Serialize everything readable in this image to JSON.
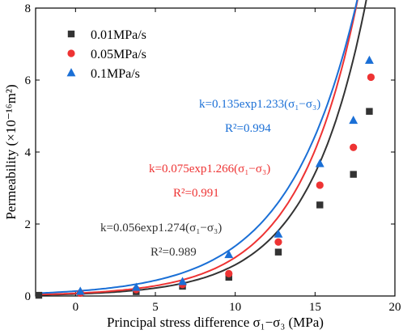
{
  "chart_data": {
    "type": "scatter",
    "xlabel": "Principal stress difference σ₁−σ₃ (MPa)",
    "ylabel": "Permeability (×10⁻¹⁶m²)",
    "xlim": [
      -2.5,
      20
    ],
    "ylim": [
      0,
      8
    ],
    "xticks": [
      0,
      5,
      10,
      15,
      20
    ],
    "yticks": [
      0,
      2,
      4,
      6,
      8
    ],
    "legend_position": "top-left",
    "series": [
      {
        "name": "0.01MPa/s",
        "color": "#333333",
        "marker": "square",
        "x": [
          -2.3,
          3.8,
          6.7,
          9.6,
          12.7,
          15.3,
          17.4,
          18.4
        ],
        "y": [
          0.02,
          0.12,
          0.27,
          0.52,
          1.22,
          2.53,
          3.38,
          5.13
        ],
        "fit": {
          "a": 0.056,
          "b": 0.274
        },
        "equation": "k=0.056exp1.274(σ₁−σ₃)",
        "r2": "R²=0.989"
      },
      {
        "name": "0.05MPa/s",
        "color": "#ee3333",
        "marker": "circle",
        "x": [
          0.3,
          3.8,
          6.7,
          9.6,
          12.7,
          15.3,
          17.4,
          18.5
        ],
        "y": [
          0.08,
          0.18,
          0.32,
          0.62,
          1.5,
          3.08,
          4.13,
          6.08
        ],
        "fit": {
          "a": 0.075,
          "b": 0.266
        },
        "equation": "k=0.075exp1.266(σ₁−σ₃)",
        "r2": "R²=0.991"
      },
      {
        "name": "0.1MPa/s",
        "color": "#1a6fd6",
        "marker": "triangle",
        "x": [
          0.3,
          3.8,
          6.7,
          9.6,
          12.7,
          15.3,
          17.4,
          18.4
        ],
        "y": [
          0.13,
          0.24,
          0.4,
          1.15,
          1.72,
          3.68,
          4.88,
          6.55
        ],
        "fit": {
          "a": 0.135,
          "b": 0.233
        },
        "equation": "k=0.135exp1.233(σ₁−σ₃)",
        "r2": "R²=0.994"
      }
    ]
  }
}
